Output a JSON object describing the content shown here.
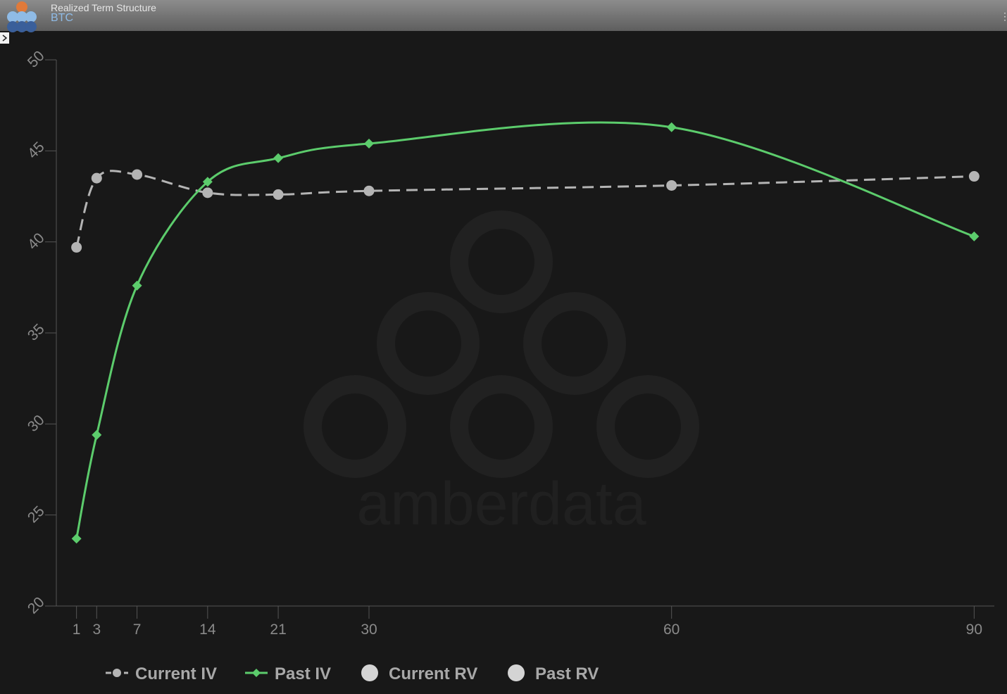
{
  "header": {
    "title": "Realized Term Structure",
    "subtitle": "BTC"
  },
  "chart_data": {
    "type": "line",
    "watermark": "amberdata",
    "x": [
      1,
      3,
      7,
      14,
      21,
      30,
      60,
      90
    ],
    "xlim": [
      -1,
      92
    ],
    "xticks": [
      1,
      3,
      7,
      14,
      21,
      30,
      60,
      90
    ],
    "ylim": [
      20,
      50
    ],
    "yticks": [
      20,
      25,
      30,
      35,
      40,
      45,
      50
    ],
    "series": [
      {
        "name": "Current IV",
        "color": "#b4b4b4",
        "marker": "circle",
        "dashed": true,
        "values": [
          39.7,
          43.5,
          43.7,
          42.7,
          42.6,
          42.8,
          43.1,
          43.6
        ]
      },
      {
        "name": "Past IV",
        "color": "#5ccc6c",
        "marker": "diamond",
        "dashed": false,
        "values": [
          23.7,
          29.4,
          37.6,
          43.3,
          44.6,
          45.4,
          46.3,
          40.3
        ]
      },
      {
        "name": "Current RV",
        "color": "#d4d4d4",
        "marker": "circle",
        "dashed": false,
        "values": [
          null,
          null,
          null,
          null,
          null,
          null,
          null,
          null
        ]
      },
      {
        "name": "Past RV",
        "color": "#d4d4d4",
        "marker": "circle",
        "dashed": false,
        "values": [
          null,
          null,
          null,
          null,
          null,
          null,
          null,
          null
        ]
      }
    ]
  }
}
